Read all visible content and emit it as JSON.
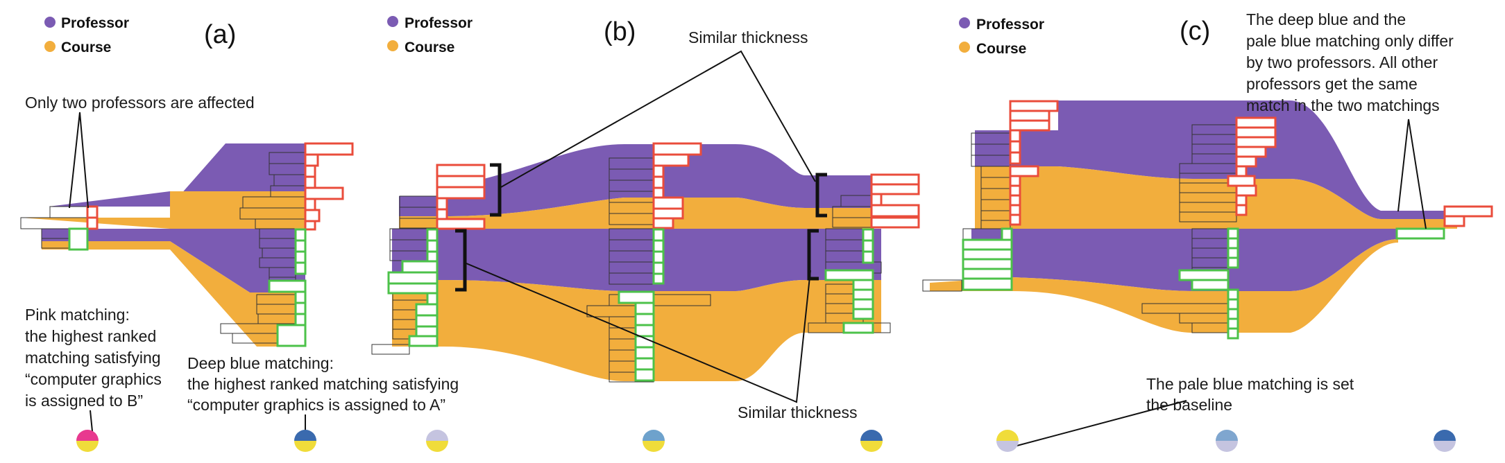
{
  "colors": {
    "professor": "#7b5bb3",
    "course": "#f2ae3d",
    "pink_match": "#ea4c3b",
    "green_match": "#4cc24a",
    "pink_dot": "#e8398f",
    "deep_blue_dot": "#3a6aae",
    "pale_blue_dot": "#c5c4e0",
    "mid_blue_dot": "#6ea2cc",
    "light_steel_dot": "#7fa6cf",
    "lavender_dot": "#c5c4e0",
    "yellow_dot": "#f0dc3a"
  },
  "legend": {
    "professor": "Professor",
    "course": "Course"
  },
  "panels": {
    "a": "(a)",
    "b": "(b)",
    "c": "(c)"
  },
  "annotations": {
    "only_two": "Only two professors are affected",
    "pink_matching": [
      "Pink matching:",
      "the highest ranked",
      "matching satisfying",
      "“computer graphics",
      "is assigned to B”"
    ],
    "deep_blue_matching": [
      "Deep blue matching:",
      "the highest ranked matching satisfying",
      "“computer graphics is assigned to A”"
    ],
    "similar_top": "Similar thickness",
    "similar_bottom": "Similar thickness",
    "baseline": [
      "The pale blue matching is set",
      "the baseline"
    ],
    "deep_pale": [
      "The deep blue and the",
      "pale blue matching only differ",
      "by two professors. All other",
      "professors get the same",
      "match in the two matchings"
    ]
  },
  "glyphs": [
    {
      "name": "pink-yellow",
      "top": "#e8398f",
      "bottom": "#f0dc3a"
    },
    {
      "name": "deepblue-yellow",
      "top": "#3a6aae",
      "bottom": "#f0dc3a"
    },
    {
      "name": "lavender-yellow",
      "top": "#c5c4e0",
      "bottom": "#f0dc3a"
    },
    {
      "name": "midblue-yellow",
      "top": "#6ea2cc",
      "bottom": "#f0dc3a"
    },
    {
      "name": "deepblue-yellow-2",
      "top": "#3a6aae",
      "bottom": "#f0dc3a"
    },
    {
      "name": "yellow-lavender",
      "top": "#f0dc3a",
      "bottom": "#c5c4e0"
    },
    {
      "name": "steel-lavender",
      "top": "#7fa6cf",
      "bottom": "#c5c4e0"
    },
    {
      "name": "deepblue-lavender",
      "top": "#3a6aae",
      "bottom": "#c5c4e0"
    }
  ]
}
